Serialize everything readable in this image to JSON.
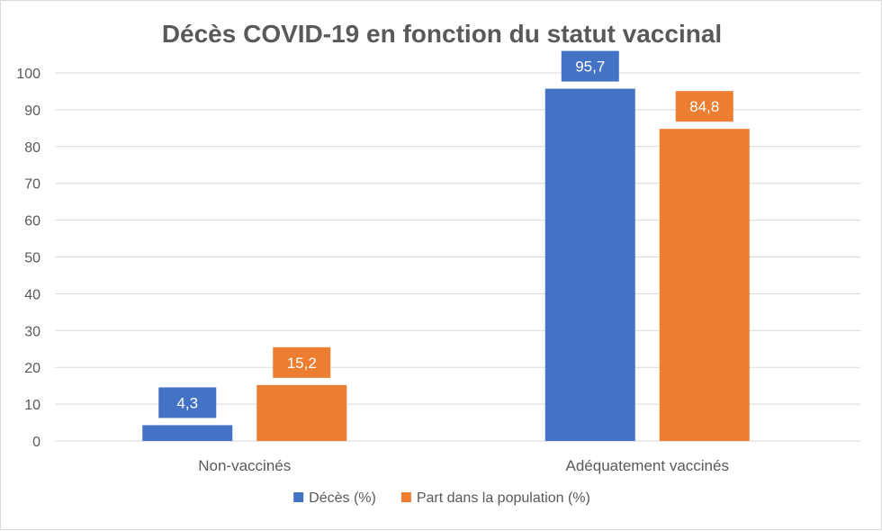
{
  "chart_data": {
    "type": "bar",
    "title": "Décès COVID-19 en fonction du statut vaccinal",
    "categories": [
      "Non-vaccinés",
      "Adéquatement vaccinés"
    ],
    "series": [
      {
        "name": "Décès (%)",
        "color": "#4472c4",
        "values": [
          4.3,
          95.7
        ],
        "labels": [
          "4,3",
          "95,7"
        ]
      },
      {
        "name": "Part dans la population (%)",
        "color": "#ed7d31",
        "values": [
          15.2,
          84.8
        ],
        "labels": [
          "15,2",
          "84,8"
        ]
      }
    ],
    "xlabel": "",
    "ylabel": "",
    "ylim": [
      0,
      100
    ],
    "yticks": [
      0,
      10,
      20,
      30,
      40,
      50,
      60,
      70,
      80,
      90,
      100
    ],
    "grid": true,
    "legend": "bottom"
  }
}
